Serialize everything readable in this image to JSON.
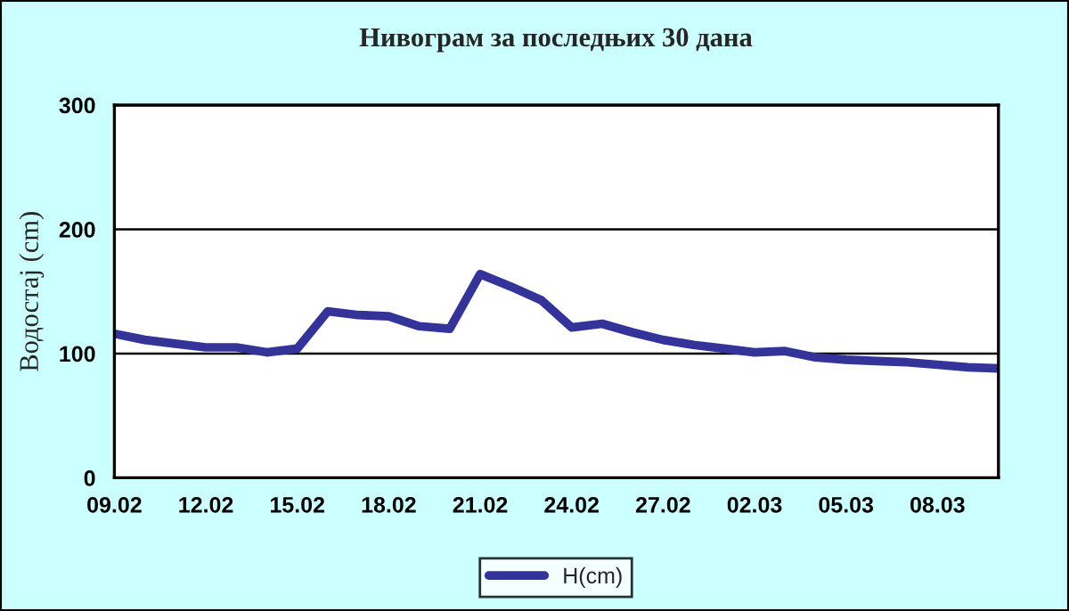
{
  "chart_data": {
    "type": "line",
    "title": "Нивограм за последњих 30 дана",
    "ylabel": "Водостај (cm)",
    "categories": [
      "09.02",
      null,
      null,
      "12.02",
      null,
      null,
      "15.02",
      null,
      null,
      "18.02",
      null,
      null,
      "21.02",
      null,
      null,
      "24.02",
      null,
      null,
      "27.02",
      null,
      null,
      "02.03",
      null,
      null,
      "05.03",
      null,
      null,
      "08.03",
      null,
      null
    ],
    "series": [
      {
        "name": "H(cm)",
        "color": "#333399",
        "values": [
          116,
          111,
          108,
          105,
          105,
          101,
          104,
          134,
          131,
          130,
          122,
          120,
          164,
          154,
          143,
          121,
          124,
          117,
          111,
          107,
          104,
          101,
          102,
          97,
          95,
          94,
          93,
          91,
          89,
          88
        ]
      }
    ],
    "ylim": [
      0,
      300
    ],
    "yticks": [
      0,
      100,
      200,
      300
    ],
    "grid": "y",
    "legend": "bottom",
    "marker": "none",
    "line_style": "solid"
  }
}
